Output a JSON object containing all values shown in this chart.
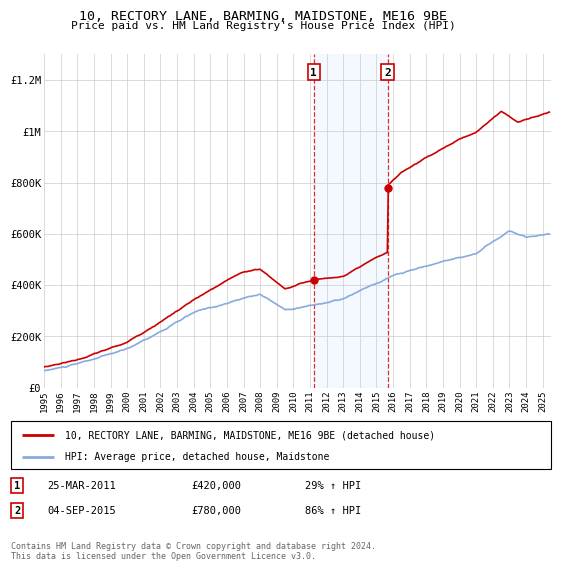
{
  "title1": "10, RECTORY LANE, BARMING, MAIDSTONE, ME16 9BE",
  "title2": "Price paid vs. HM Land Registry's House Price Index (HPI)",
  "ylim": [
    0,
    1300000
  ],
  "yticks": [
    0,
    200000,
    400000,
    600000,
    800000,
    1000000,
    1200000
  ],
  "ytick_labels": [
    "£0",
    "£200K",
    "£400K",
    "£600K",
    "£800K",
    "£1M",
    "£1.2M"
  ],
  "year_start": 1995,
  "year_end": 2025,
  "sale1_date": 2011.23,
  "sale1_value": 420000,
  "sale1_label": "1",
  "sale2_date": 2015.67,
  "sale2_value": 780000,
  "sale2_label": "2",
  "property_color": "#cc0000",
  "hpi_color": "#88aadd",
  "highlight_color": "#ddeeff",
  "legend_property": "10, RECTORY LANE, BARMING, MAIDSTONE, ME16 9BE (detached house)",
  "legend_hpi": "HPI: Average price, detached house, Maidstone",
  "table_rows": [
    {
      "num": "1",
      "date": "25-MAR-2011",
      "price": "£420,000",
      "change": "29% ↑ HPI"
    },
    {
      "num": "2",
      "date": "04-SEP-2015",
      "price": "£780,000",
      "change": "86% ↑ HPI"
    }
  ],
  "footnote": "Contains HM Land Registry data © Crown copyright and database right 2024.\nThis data is licensed under the Open Government Licence v3.0.",
  "background_color": "#ffffff",
  "grid_color": "#cccccc"
}
